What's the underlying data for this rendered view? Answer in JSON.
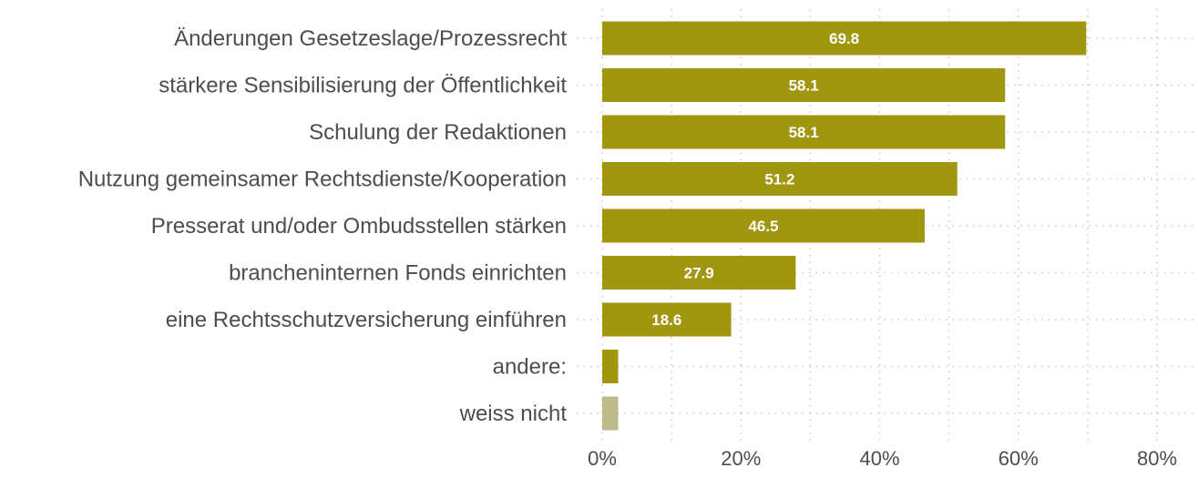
{
  "chart_data": {
    "type": "bar",
    "orientation": "horizontal",
    "title": "",
    "xlabel": "",
    "ylabel": "",
    "categories": [
      "Änderungen Gesetzeslage/Prozessrecht",
      "stärkere Sensibilisierung der Öffentlichkeit",
      "Schulung der Redaktionen",
      "Nutzung gemeinsamer Rechtsdienste/Kooperation",
      "Presserat und/oder Ombudsstellen stärken",
      "brancheninternen Fonds einrichten",
      "eine Rechtsschutzversicherung einführen",
      "andere:",
      "weiss nicht"
    ],
    "values": [
      69.8,
      58.1,
      58.1,
      51.2,
      46.5,
      27.9,
      18.6,
      2.3,
      2.3
    ],
    "data_labels": [
      "69.8",
      "58.1",
      "58.1",
      "51.2",
      "46.5",
      "27.9",
      "18.6",
      "",
      ""
    ],
    "colors": [
      "#a0960f",
      "#a0960f",
      "#a0960f",
      "#a0960f",
      "#a0960f",
      "#a0960f",
      "#a0960f",
      "#a0960f",
      "#bfba8a"
    ],
    "xlim": [
      0,
      85
    ],
    "xticks": [
      0,
      20,
      40,
      60,
      80
    ],
    "xtick_labels": [
      "0%",
      "20%",
      "40%",
      "60%",
      "80%"
    ],
    "minor_grid": [
      10,
      30,
      50,
      70
    ],
    "grid": true,
    "legend": "none"
  }
}
